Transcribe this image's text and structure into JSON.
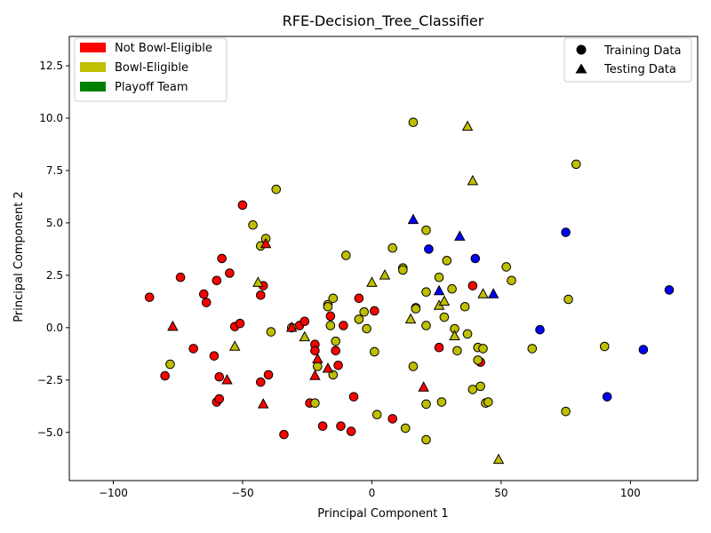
{
  "chart_data": {
    "type": "scatter",
    "title": "RFE-Decision_Tree_Classifier",
    "xlabel": "Principal Component 1",
    "ylabel": "Principal Component 2",
    "xlim": [
      -117,
      126
    ],
    "ylim": [
      -7.3,
      13.9
    ],
    "xticks": [
      -100,
      -50,
      0,
      50,
      100
    ],
    "xtick_labels": [
      "−100",
      "−50",
      "0",
      "50",
      "100"
    ],
    "yticks": [
      -5.0,
      -2.5,
      0.0,
      2.5,
      5.0,
      7.5,
      10.0,
      12.5
    ],
    "ytick_labels": [
      "−5.0",
      "−2.5",
      "0.0",
      "2.5",
      "5.0",
      "7.5",
      "10.0",
      "12.5"
    ],
    "grid": false,
    "class_legend": {
      "placement": "top-left",
      "items": [
        {
          "label": "Not Bowl-Eligible",
          "color": "#ff0000"
        },
        {
          "label": "Bowl-Eligible",
          "color": "#bfbf00"
        },
        {
          "label": "Playoff Team",
          "color": "#008000"
        }
      ]
    },
    "marker_legend": {
      "placement": "top-right",
      "items": [
        {
          "label": "Training Data",
          "marker": "circle"
        },
        {
          "label": "Testing Data",
          "marker": "triangle"
        }
      ]
    },
    "class_colors": {
      "red": "#ff0000",
      "yellow": "#bfbf00",
      "blue": "#0000ff"
    },
    "series": [
      {
        "marker": "circle",
        "points": [
          {
            "x": -86,
            "y": 1.45,
            "c": "red"
          },
          {
            "x": -74,
            "y": 2.4,
            "c": "red"
          },
          {
            "x": -80,
            "y": -2.3,
            "c": "red"
          },
          {
            "x": -69,
            "y": -1.0,
            "c": "red"
          },
          {
            "x": -65,
            "y": 1.6,
            "c": "red"
          },
          {
            "x": -64,
            "y": 1.2,
            "c": "red"
          },
          {
            "x": -61,
            "y": -1.35,
            "c": "red"
          },
          {
            "x": -60,
            "y": 2.25,
            "c": "red"
          },
          {
            "x": -58,
            "y": 3.3,
            "c": "red"
          },
          {
            "x": -55,
            "y": 2.6,
            "c": "red"
          },
          {
            "x": -59,
            "y": -2.35,
            "c": "red"
          },
          {
            "x": -60,
            "y": -3.55,
            "c": "red"
          },
          {
            "x": -59,
            "y": -3.4,
            "c": "red"
          },
          {
            "x": -53,
            "y": 0.05,
            "c": "red"
          },
          {
            "x": -51,
            "y": 0.2,
            "c": "red"
          },
          {
            "x": -50,
            "y": 5.85,
            "c": "red"
          },
          {
            "x": -43,
            "y": 1.55,
            "c": "red"
          },
          {
            "x": -42,
            "y": 2.0,
            "c": "red"
          },
          {
            "x": -43,
            "y": -2.6,
            "c": "red"
          },
          {
            "x": -40,
            "y": -2.25,
            "c": "red"
          },
          {
            "x": -34,
            "y": -5.1,
            "c": "red"
          },
          {
            "x": -28,
            "y": 0.1,
            "c": "red"
          },
          {
            "x": -26,
            "y": 0.3,
            "c": "red"
          },
          {
            "x": -24,
            "y": -3.6,
            "c": "red"
          },
          {
            "x": -22,
            "y": -0.8,
            "c": "red"
          },
          {
            "x": -22,
            "y": -1.1,
            "c": "red"
          },
          {
            "x": -19,
            "y": -4.7,
            "c": "red"
          },
          {
            "x": -16,
            "y": 0.55,
            "c": "red"
          },
          {
            "x": -14,
            "y": -1.1,
            "c": "red"
          },
          {
            "x": -13,
            "y": -1.8,
            "c": "red"
          },
          {
            "x": -12,
            "y": -4.7,
            "c": "red"
          },
          {
            "x": -11,
            "y": 0.1,
            "c": "red"
          },
          {
            "x": -8,
            "y": -4.95,
            "c": "red"
          },
          {
            "x": -7,
            "y": -3.3,
            "c": "red"
          },
          {
            "x": -5,
            "y": 1.4,
            "c": "red"
          },
          {
            "x": 1,
            "y": 0.8,
            "c": "red"
          },
          {
            "x": 8,
            "y": -4.35,
            "c": "red"
          },
          {
            "x": 26,
            "y": -0.95,
            "c": "red"
          },
          {
            "x": 39,
            "y": 2.0,
            "c": "red"
          },
          {
            "x": 42,
            "y": -1.65,
            "c": "red"
          },
          {
            "x": -46,
            "y": 4.9,
            "c": "yellow"
          },
          {
            "x": -43,
            "y": 3.9,
            "c": "yellow"
          },
          {
            "x": -41,
            "y": 4.25,
            "c": "yellow"
          },
          {
            "x": -37,
            "y": 6.6,
            "c": "yellow"
          },
          {
            "x": -39,
            "y": -0.2,
            "c": "yellow"
          },
          {
            "x": -78,
            "y": -1.75,
            "c": "yellow"
          },
          {
            "x": -31,
            "y": 0.0,
            "c": "yellow"
          },
          {
            "x": -22,
            "y": -3.6,
            "c": "yellow"
          },
          {
            "x": -21,
            "y": -1.85,
            "c": "yellow"
          },
          {
            "x": -17,
            "y": 1.1,
            "c": "yellow"
          },
          {
            "x": -17,
            "y": 1.0,
            "c": "yellow"
          },
          {
            "x": -16,
            "y": 0.1,
            "c": "yellow"
          },
          {
            "x": -15,
            "y": 1.4,
            "c": "yellow"
          },
          {
            "x": -15,
            "y": -2.25,
            "c": "yellow"
          },
          {
            "x": -14,
            "y": -0.65,
            "c": "yellow"
          },
          {
            "x": -10,
            "y": 3.45,
            "c": "yellow"
          },
          {
            "x": -5,
            "y": 0.4,
            "c": "yellow"
          },
          {
            "x": -3,
            "y": 0.75,
            "c": "yellow"
          },
          {
            "x": -2,
            "y": -0.05,
            "c": "yellow"
          },
          {
            "x": 1,
            "y": -1.15,
            "c": "yellow"
          },
          {
            "x": 2,
            "y": -4.15,
            "c": "yellow"
          },
          {
            "x": 8,
            "y": 3.8,
            "c": "yellow"
          },
          {
            "x": 12,
            "y": 2.85,
            "c": "yellow"
          },
          {
            "x": 12,
            "y": 2.75,
            "c": "yellow"
          },
          {
            "x": 13,
            "y": -4.8,
            "c": "yellow"
          },
          {
            "x": 16,
            "y": 9.8,
            "c": "yellow"
          },
          {
            "x": 17,
            "y": 0.95,
            "c": "yellow"
          },
          {
            "x": 17,
            "y": 0.9,
            "c": "yellow"
          },
          {
            "x": 16,
            "y": -1.85,
            "c": "yellow"
          },
          {
            "x": 21,
            "y": 4.65,
            "c": "yellow"
          },
          {
            "x": 21,
            "y": 1.7,
            "c": "yellow"
          },
          {
            "x": 21,
            "y": 0.1,
            "c": "yellow"
          },
          {
            "x": 21,
            "y": -3.65,
            "c": "yellow"
          },
          {
            "x": 21,
            "y": -5.35,
            "c": "yellow"
          },
          {
            "x": 26,
            "y": 2.4,
            "c": "yellow"
          },
          {
            "x": 28,
            "y": 0.5,
            "c": "yellow"
          },
          {
            "x": 27,
            "y": -3.55,
            "c": "yellow"
          },
          {
            "x": 29,
            "y": 3.2,
            "c": "yellow"
          },
          {
            "x": 31,
            "y": 1.85,
            "c": "yellow"
          },
          {
            "x": 32,
            "y": -0.05,
            "c": "yellow"
          },
          {
            "x": 33,
            "y": -1.1,
            "c": "yellow"
          },
          {
            "x": 36,
            "y": 1.0,
            "c": "yellow"
          },
          {
            "x": 37,
            "y": -0.3,
            "c": "yellow"
          },
          {
            "x": 39,
            "y": -2.95,
            "c": "yellow"
          },
          {
            "x": 41,
            "y": -0.95,
            "c": "yellow"
          },
          {
            "x": 41,
            "y": -1.55,
            "c": "yellow"
          },
          {
            "x": 42,
            "y": -2.8,
            "c": "yellow"
          },
          {
            "x": 43,
            "y": -1.0,
            "c": "yellow"
          },
          {
            "x": 44,
            "y": -3.6,
            "c": "yellow"
          },
          {
            "x": 45,
            "y": -3.55,
            "c": "yellow"
          },
          {
            "x": 52,
            "y": 2.9,
            "c": "yellow"
          },
          {
            "x": 54,
            "y": 2.25,
            "c": "yellow"
          },
          {
            "x": 62,
            "y": -1.0,
            "c": "yellow"
          },
          {
            "x": 75,
            "y": -4.0,
            "c": "yellow"
          },
          {
            "x": 76,
            "y": 1.35,
            "c": "yellow"
          },
          {
            "x": 79,
            "y": 7.8,
            "c": "yellow"
          },
          {
            "x": 90,
            "y": -0.9,
            "c": "yellow"
          },
          {
            "x": 22,
            "y": 3.75,
            "c": "blue"
          },
          {
            "x": 40,
            "y": 3.3,
            "c": "blue"
          },
          {
            "x": 65,
            "y": -0.1,
            "c": "blue"
          },
          {
            "x": 75,
            "y": 4.55,
            "c": "blue"
          },
          {
            "x": 91,
            "y": -3.3,
            "c": "blue"
          },
          {
            "x": 105,
            "y": -1.05,
            "c": "blue"
          },
          {
            "x": 115,
            "y": 1.8,
            "c": "blue"
          }
        ]
      },
      {
        "marker": "triangle",
        "points": [
          {
            "x": -77,
            "y": 0.05,
            "c": "red"
          },
          {
            "x": -56,
            "y": -2.5,
            "c": "red"
          },
          {
            "x": -42,
            "y": -3.65,
            "c": "red"
          },
          {
            "x": -41,
            "y": 4.0,
            "c": "red"
          },
          {
            "x": -31,
            "y": 0.0,
            "c": "red"
          },
          {
            "x": -22,
            "y": -2.3,
            "c": "red"
          },
          {
            "x": -21,
            "y": -1.5,
            "c": "red"
          },
          {
            "x": -17,
            "y": -1.95,
            "c": "red"
          },
          {
            "x": 20,
            "y": -2.85,
            "c": "red"
          },
          {
            "x": -53,
            "y": -0.9,
            "c": "yellow"
          },
          {
            "x": -44,
            "y": 2.15,
            "c": "yellow"
          },
          {
            "x": -26,
            "y": -0.45,
            "c": "yellow"
          },
          {
            "x": 0,
            "y": 2.15,
            "c": "yellow"
          },
          {
            "x": 5,
            "y": 2.5,
            "c": "yellow"
          },
          {
            "x": 15,
            "y": 0.4,
            "c": "yellow"
          },
          {
            "x": 26,
            "y": 1.05,
            "c": "yellow"
          },
          {
            "x": 28,
            "y": 1.25,
            "c": "yellow"
          },
          {
            "x": 32,
            "y": -0.4,
            "c": "yellow"
          },
          {
            "x": 37,
            "y": 9.6,
            "c": "yellow"
          },
          {
            "x": 39,
            "y": 7.0,
            "c": "yellow"
          },
          {
            "x": 43,
            "y": 1.6,
            "c": "yellow"
          },
          {
            "x": 49,
            "y": -6.3,
            "c": "yellow"
          },
          {
            "x": 16,
            "y": 5.15,
            "c": "blue"
          },
          {
            "x": 26,
            "y": 1.75,
            "c": "blue"
          },
          {
            "x": 34,
            "y": 4.35,
            "c": "blue"
          },
          {
            "x": 47,
            "y": 1.6,
            "c": "blue"
          }
        ]
      }
    ]
  }
}
